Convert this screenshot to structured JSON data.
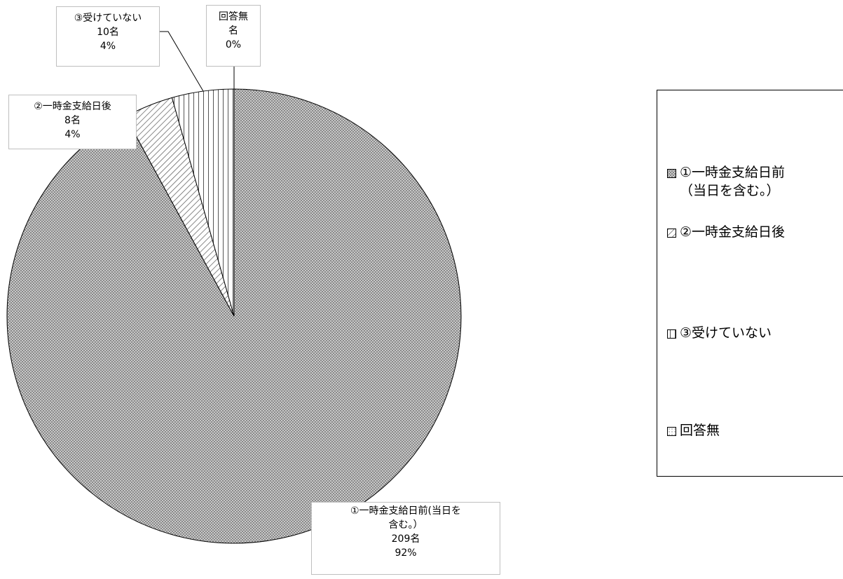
{
  "chart_data": {
    "type": "pie",
    "title": "",
    "start_angle_deg": 0,
    "direction": "clockwise",
    "slices": [
      {
        "name": "①一時金支給日前（当日を含む。）",
        "label_line1": "①一時金支給日前(当日を",
        "label_line2": "含む。）",
        "count": 209,
        "count_label": "209名",
        "percent_label": "92%",
        "pattern": "dense-crosshatch"
      },
      {
        "name": "②一時金支給日後",
        "label_line1": "②一時金支給日後",
        "label_line2": "",
        "count": 8,
        "count_label": "8名",
        "percent_label": "4%",
        "pattern": "diagonal-stripes"
      },
      {
        "name": "③受けていない",
        "label_line1": "③受けていない",
        "label_line2": "",
        "count": 10,
        "count_label": "10名",
        "percent_label": "4%",
        "pattern": "vertical-stripes"
      },
      {
        "name": "回答無",
        "label_line1": "回答無",
        "label_line2": "",
        "count": 0,
        "count_label": "名",
        "percent_label": "0%",
        "pattern": "dotted"
      }
    ],
    "legend": {
      "position": "right",
      "items": [
        "①一時金支給日前\n（当日を含む。）",
        "②一時金支給日後",
        "③受けていない",
        "回答無"
      ]
    }
  }
}
